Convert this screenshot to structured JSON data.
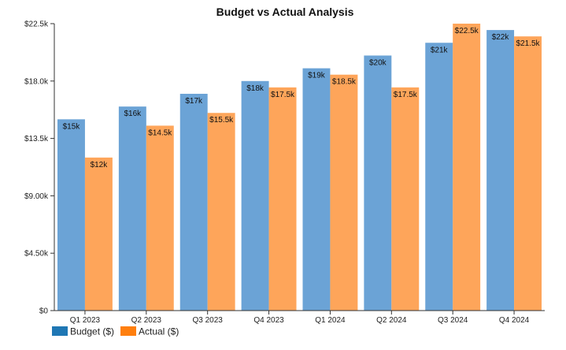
{
  "chart_data": {
    "type": "bar",
    "title": "Budget vs Actual Analysis",
    "xlabel": "",
    "ylabel": "",
    "categories": [
      "Q1 2023",
      "Q2 2023",
      "Q3 2023",
      "Q4 2023",
      "Q1 2024",
      "Q2 2024",
      "Q3 2024",
      "Q4 2024"
    ],
    "series": [
      {
        "name": "Budget ($)",
        "color": "#6ba3d6",
        "legend_color": "#1f77b4",
        "values": [
          15000,
          16000,
          17000,
          18000,
          19000,
          20000,
          21000,
          22000
        ],
        "labels": [
          "$15k",
          "$16k",
          "$17k",
          "$18k",
          "$19k",
          "$20k",
          "$21k",
          "$22k"
        ]
      },
      {
        "name": "Actual ($)",
        "color": "#fea55a",
        "legend_color": "#ff7f0e",
        "values": [
          12000,
          14500,
          15500,
          17500,
          18500,
          17500,
          22500,
          21500
        ],
        "labels": [
          "$12k",
          "$14.5k",
          "$15.5k",
          "$17.5k",
          "$18.5k",
          "$17.5k",
          "$22.5k",
          "$21.5k"
        ]
      }
    ],
    "ylim": [
      0,
      22500
    ],
    "yticks": [
      0,
      4500,
      9000,
      13500,
      18000,
      22500
    ],
    "ytick_labels": [
      "$0",
      "$4.50k",
      "$9.00k",
      "$13.5k",
      "$18.0k",
      "$22.5k"
    ],
    "grid": false,
    "legend_position": "bottom-left"
  }
}
